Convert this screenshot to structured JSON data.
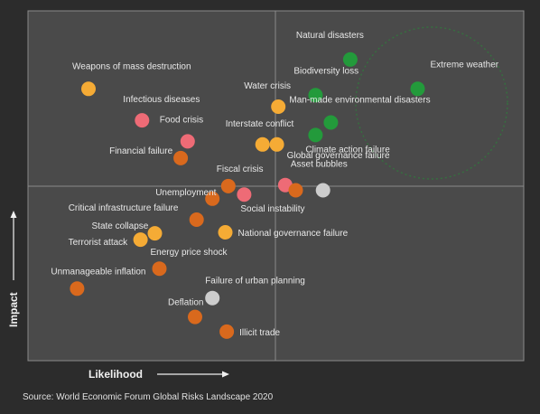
{
  "chart_data": {
    "type": "scatter",
    "title": "",
    "xlabel": "Likelihood",
    "ylabel": "Impact",
    "xlim": [
      0,
      100
    ],
    "ylim": [
      0,
      100
    ],
    "grid": "quadrants",
    "colors": {
      "yellow": "#f5ab35",
      "pink": "#ee6b76",
      "orange": "#d9691d",
      "green": "#239a3b",
      "grey": "#cdcdcd"
    },
    "points": [
      {
        "label": "Natural disasters",
        "x": 65.0,
        "y": 86.1,
        "color": "green"
      },
      {
        "label": "Extreme weather",
        "x": 78.6,
        "y": 77.7,
        "color": "green"
      },
      {
        "label": "Biodiversity loss",
        "x": 58.0,
        "y": 75.9,
        "color": "green"
      },
      {
        "label": "Man-made environmental disasters",
        "x": 61.1,
        "y": 68.1,
        "color": "green"
      },
      {
        "label": "Climate action failure",
        "x": 58.0,
        "y": 64.5,
        "color": "green"
      },
      {
        "label": "Weapons of mass destruction",
        "x": 12.2,
        "y": 77.7,
        "color": "yellow"
      },
      {
        "label": "Water crisis",
        "x": 50.5,
        "y": 72.6,
        "color": "yellow"
      },
      {
        "label": "Infectious diseases",
        "x": 23.0,
        "y": 68.7,
        "color": "pink"
      },
      {
        "label": "Food crisis",
        "x": 32.2,
        "y": 62.7,
        "color": "pink"
      },
      {
        "label": "Interstate conflict",
        "x": 47.3,
        "y": 61.8,
        "color": "yellow"
      },
      {
        "label": "Global governance failure",
        "x": 50.2,
        "y": 61.8,
        "color": "yellow"
      },
      {
        "label": "Financial failure",
        "x": 30.8,
        "y": 57.9,
        "color": "orange"
      },
      {
        "label": "Fiscal crisis",
        "x": 40.4,
        "y": 49.9,
        "color": "orange"
      },
      {
        "label": "Social instability",
        "x": 43.6,
        "y": 47.5,
        "color": "pink"
      },
      {
        "label": "Asset bubbles",
        "x": 51.9,
        "y": 50.2,
        "color": "pink"
      },
      {
        "label": "Asset bubbles (2)",
        "x": 54.0,
        "y": 48.7,
        "color": "orange",
        "unlabeled": true
      },
      {
        "label": "Asset bubbles (3)",
        "x": 59.5,
        "y": 48.7,
        "color": "grey",
        "unlabeled": true
      },
      {
        "label": "Unemployment",
        "x": 37.2,
        "y": 46.3,
        "color": "orange"
      },
      {
        "label": "Critical infrastructure failure",
        "x": 34.0,
        "y": 40.3,
        "color": "orange"
      },
      {
        "label": "National governance failure",
        "x": 39.8,
        "y": 36.7,
        "color": "yellow"
      },
      {
        "label": "State collapse",
        "x": 25.6,
        "y": 36.4,
        "color": "yellow"
      },
      {
        "label": "Terrorist attack",
        "x": 22.7,
        "y": 34.6,
        "color": "yellow"
      },
      {
        "label": "Energy price shock",
        "x": 26.5,
        "y": 26.3,
        "color": "orange"
      },
      {
        "label": "Unmanageable inflation",
        "x": 9.9,
        "y": 20.6,
        "color": "orange"
      },
      {
        "label": "Failure of urban planning",
        "x": 37.2,
        "y": 17.9,
        "color": "grey"
      },
      {
        "label": "Deflation",
        "x": 33.7,
        "y": 12.5,
        "color": "orange"
      },
      {
        "label": "Illicit trade",
        "x": 40.1,
        "y": 8.3,
        "color": "orange"
      }
    ]
  },
  "source": "Source: World Economic Forum Global Risks Landscape 2020"
}
